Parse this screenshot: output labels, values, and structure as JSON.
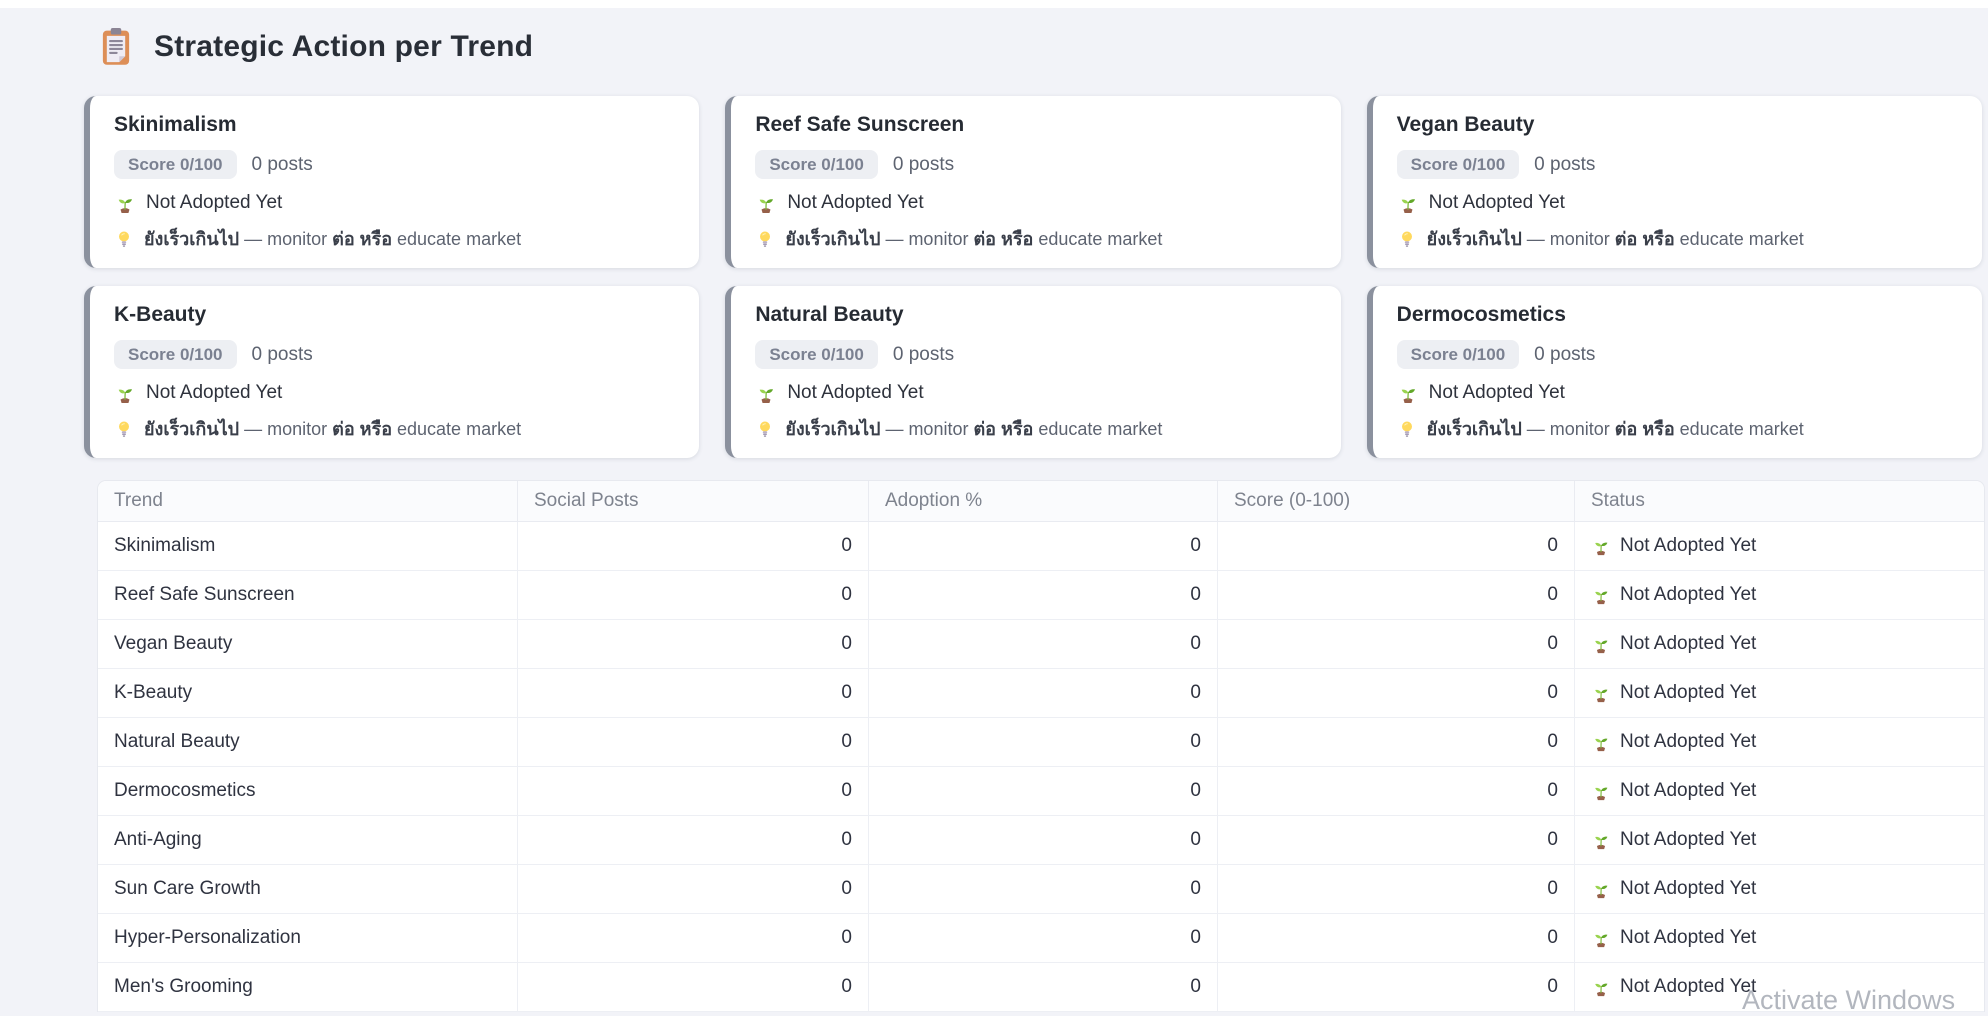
{
  "page": {
    "title": "Strategic Action per Trend",
    "title_icon": "clipboard-icon",
    "watermark": "Activate Windows"
  },
  "colors": {
    "page_background": "#f2f3f8",
    "card_background": "#ffffff",
    "card_accent_border": "#8b919e",
    "badge_background": "#edeff3",
    "badge_text": "#7b8191",
    "body_text": "#2f3340",
    "muted_text": "#5d6370",
    "table_header_text": "#7e838e",
    "table_border": "#e9ebf1"
  },
  "cards_shared": {
    "status_icon": "seedling-icon",
    "advice_icon": "lightbulb-icon",
    "advice_full": "ยังเร็วเกินไป — monitor ต่อ หรือ educate market",
    "advice_parts": [
      {
        "text": "ยังเร็วเกินไป",
        "thai": true
      },
      {
        "text": " — monitor ",
        "thai": false
      },
      {
        "text": "ต่อ",
        "thai": true
      },
      {
        "text": " ",
        "thai": false
      },
      {
        "text": "หรือ",
        "thai": true
      },
      {
        "text": " ",
        "thai": false
      },
      {
        "text": "educate market",
        "thai": false
      }
    ]
  },
  "cards": [
    {
      "title": "Skinimalism",
      "score_label": "Score 0/100",
      "posts_label": "0 posts",
      "status": "Not Adopted Yet"
    },
    {
      "title": "Reef Safe Sunscreen",
      "score_label": "Score 0/100",
      "posts_label": "0 posts",
      "status": "Not Adopted Yet"
    },
    {
      "title": "Vegan Beauty",
      "score_label": "Score 0/100",
      "posts_label": "0 posts",
      "status": "Not Adopted Yet"
    },
    {
      "title": "K-Beauty",
      "score_label": "Score 0/100",
      "posts_label": "0 posts",
      "status": "Not Adopted Yet"
    },
    {
      "title": "Natural Beauty",
      "score_label": "Score 0/100",
      "posts_label": "0 posts",
      "status": "Not Adopted Yet"
    },
    {
      "title": "Dermocosmetics",
      "score_label": "Score 0/100",
      "posts_label": "0 posts",
      "status": "Not Adopted Yet"
    }
  ],
  "table": {
    "columns": [
      "Trend",
      "Social Posts",
      "Adoption %",
      "Score (0-100)",
      "Status"
    ],
    "status_icon": "seedling-icon",
    "rows": [
      {
        "trend": "Skinimalism",
        "social_posts": "0",
        "adoption": "0",
        "score": "0",
        "status": "Not Adopted Yet"
      },
      {
        "trend": "Reef Safe Sunscreen",
        "social_posts": "0",
        "adoption": "0",
        "score": "0",
        "status": "Not Adopted Yet"
      },
      {
        "trend": "Vegan Beauty",
        "social_posts": "0",
        "adoption": "0",
        "score": "0",
        "status": "Not Adopted Yet"
      },
      {
        "trend": "K-Beauty",
        "social_posts": "0",
        "adoption": "0",
        "score": "0",
        "status": "Not Adopted Yet"
      },
      {
        "trend": "Natural Beauty",
        "social_posts": "0",
        "adoption": "0",
        "score": "0",
        "status": "Not Adopted Yet"
      },
      {
        "trend": "Dermocosmetics",
        "social_posts": "0",
        "adoption": "0",
        "score": "0",
        "status": "Not Adopted Yet"
      },
      {
        "trend": "Anti-Aging",
        "social_posts": "0",
        "adoption": "0",
        "score": "0",
        "status": "Not Adopted Yet"
      },
      {
        "trend": "Sun Care Growth",
        "social_posts": "0",
        "adoption": "0",
        "score": "0",
        "status": "Not Adopted Yet"
      },
      {
        "trend": "Hyper-Personalization",
        "social_posts": "0",
        "adoption": "0",
        "score": "0",
        "status": "Not Adopted Yet"
      },
      {
        "trend": "Men's Grooming",
        "social_posts": "0",
        "adoption": "0",
        "score": "0",
        "status": "Not Adopted Yet"
      }
    ]
  }
}
